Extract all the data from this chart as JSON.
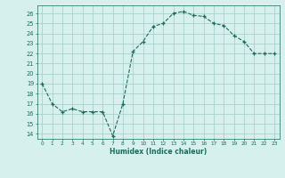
{
  "x": [
    0,
    1,
    2,
    3,
    4,
    5,
    6,
    7,
    8,
    9,
    10,
    11,
    12,
    13,
    14,
    15,
    16,
    17,
    18,
    19,
    20,
    21,
    22,
    23
  ],
  "y": [
    19.0,
    17.0,
    16.2,
    16.5,
    16.2,
    16.2,
    16.2,
    13.8,
    17.0,
    22.2,
    23.2,
    24.7,
    25.0,
    26.0,
    26.2,
    25.8,
    25.7,
    25.0,
    24.8,
    23.8,
    23.2,
    22.0,
    22.0,
    22.0
  ],
  "xlabel": "Humidex (Indice chaleur)",
  "ylabel": "",
  "xlim": [
    -0.5,
    23.5
  ],
  "ylim": [
    13.5,
    26.8
  ],
  "yticks": [
    14,
    15,
    16,
    17,
    18,
    19,
    20,
    21,
    22,
    23,
    24,
    25,
    26
  ],
  "xticks": [
    0,
    1,
    2,
    3,
    4,
    5,
    6,
    7,
    8,
    9,
    10,
    11,
    12,
    13,
    14,
    15,
    16,
    17,
    18,
    19,
    20,
    21,
    22,
    23
  ],
  "line_color": "#1a6b5a",
  "marker_color": "#1a6b5a",
  "bg_color": "#d6f0ee",
  "grid_color": "#a0ccc8",
  "label_color": "#1a6b5a",
  "tick_color": "#1a6b5a"
}
